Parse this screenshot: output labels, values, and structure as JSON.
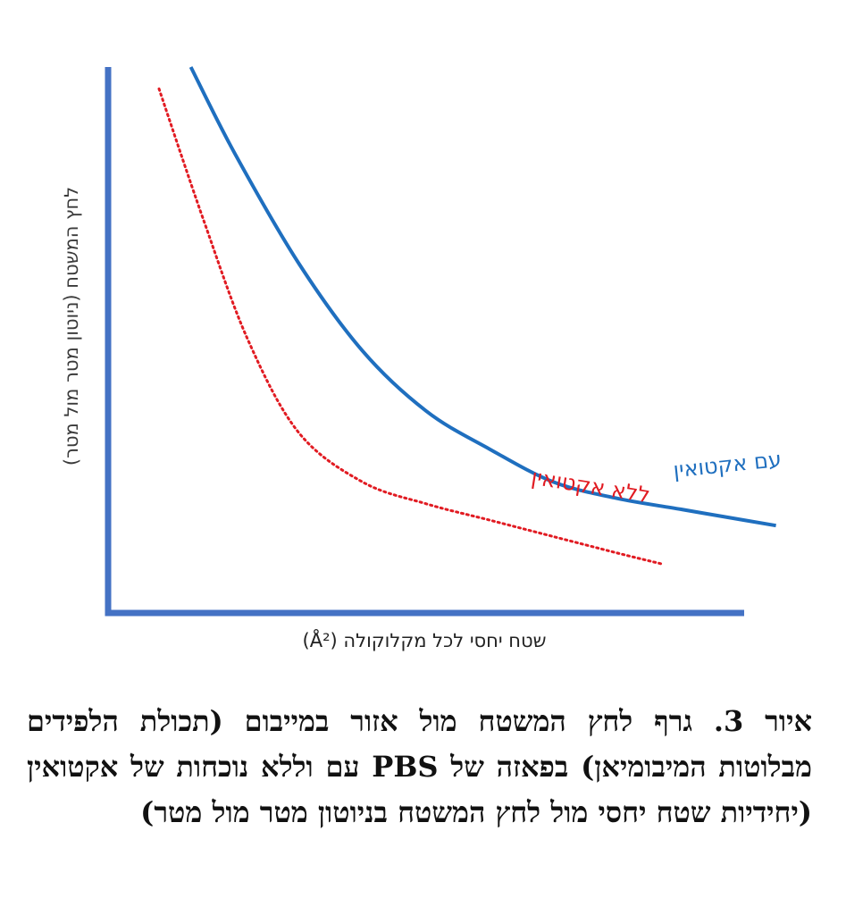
{
  "chart_data": {
    "type": "line",
    "title": "",
    "xlabel": "שטח יחסי לכל מקלוקולה (Å²)",
    "ylabel": "לחץ המשטח (ניוטון מטר מול מטר)",
    "axis_ticks": "none",
    "grid": false,
    "legend": "inline labels at curve ends",
    "series": [
      {
        "name": "עם אקטואין",
        "color": "#1f6fbf",
        "style": "solid",
        "x": [
          0.13,
          0.2,
          0.3,
          0.4,
          0.5,
          0.6,
          0.7,
          0.8,
          0.9,
          1.0,
          1.05
        ],
        "y": [
          1.0,
          0.84,
          0.64,
          0.48,
          0.37,
          0.3,
          0.24,
          0.21,
          0.19,
          0.17,
          0.16
        ]
      },
      {
        "name": "ללא אקטואין",
        "color": "#e11b22",
        "style": "dotted",
        "x": [
          0.08,
          0.15,
          0.22,
          0.3,
          0.4,
          0.5,
          0.6,
          0.7,
          0.8,
          0.87
        ],
        "y": [
          0.96,
          0.72,
          0.5,
          0.33,
          0.24,
          0.2,
          0.17,
          0.14,
          0.11,
          0.09
        ]
      }
    ],
    "colors": {
      "axis": "#4472c4"
    }
  },
  "caption": {
    "text": "איור 3. גרף לחץ המשטח מול אזור במייבום (תכולת הלפידים מבלוטות המיבומיאן) בפאזה של PBS עם וללא נוכחות של אקטואין (יחידיות שטח יחסי מול לחץ המשטח בניוטון מטר מול מטר)"
  }
}
